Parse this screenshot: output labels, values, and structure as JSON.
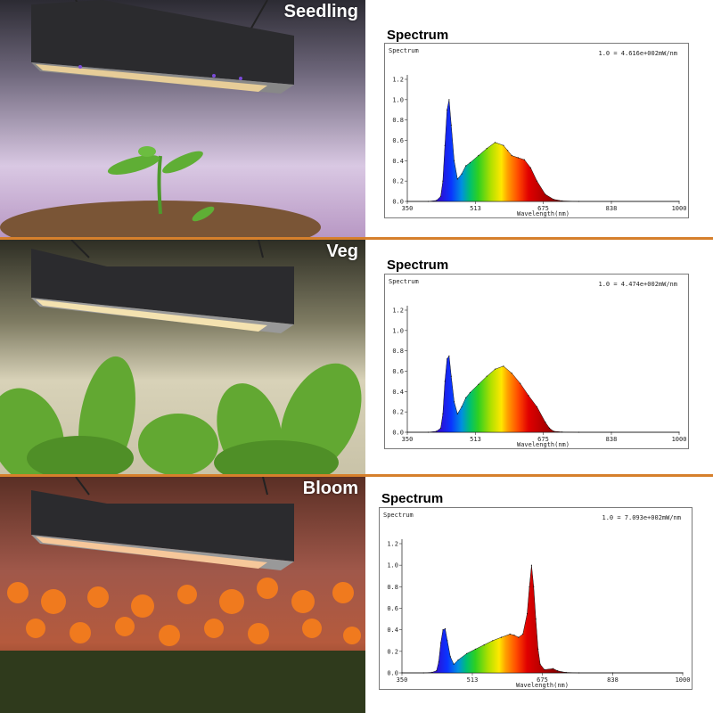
{
  "panels": [
    {
      "stage": "Seedling",
      "title": "Spectrum"
    },
    {
      "stage": "Veg",
      "title": "Spectrum"
    },
    {
      "stage": "Bloom",
      "title": "Spectrum"
    }
  ],
  "chart_data": [
    {
      "type": "area",
      "ylabel": "Spectrum",
      "xlabel": "Wavelength(nm)",
      "annotation": "1.0 = 4.616e+002mW/nm",
      "xlim": [
        350,
        1000
      ],
      "ylim": [
        0,
        1.2
      ],
      "xticks": [
        "350",
        "513",
        "675",
        "838",
        "1000"
      ],
      "yticks": [
        "0.0",
        "0.2",
        "0.4",
        "0.6",
        "0.8",
        "1.0",
        "1.2"
      ],
      "grid": false,
      "x": [
        350,
        400,
        420,
        430,
        435,
        440,
        445,
        450,
        455,
        462,
        470,
        480,
        490,
        500,
        520,
        540,
        560,
        580,
        590,
        600,
        615,
        630,
        645,
        660,
        680,
        700,
        720,
        760,
        838,
        1000
      ],
      "y": [
        0.0,
        0.0,
        0.01,
        0.05,
        0.2,
        0.55,
        0.9,
        1.0,
        0.75,
        0.4,
        0.22,
        0.27,
        0.35,
        0.38,
        0.45,
        0.52,
        0.58,
        0.55,
        0.5,
        0.45,
        0.43,
        0.41,
        0.33,
        0.2,
        0.07,
        0.02,
        0.005,
        0.0,
        0.0,
        0.0
      ]
    },
    {
      "type": "area",
      "ylabel": "Spectrum",
      "xlabel": "Wavelength(nm)",
      "annotation": "1.0 = 4.474e+002mW/nm",
      "xlim": [
        350,
        1000
      ],
      "ylim": [
        0,
        1.2
      ],
      "xticks": [
        "350",
        "513",
        "675",
        "838",
        "1000"
      ],
      "yticks": [
        "0.0",
        "0.2",
        "0.4",
        "0.6",
        "0.8",
        "1.0",
        "1.2"
      ],
      "grid": false,
      "x": [
        350,
        400,
        420,
        430,
        435,
        440,
        445,
        450,
        455,
        462,
        470,
        480,
        490,
        500,
        520,
        540,
        560,
        580,
        600,
        620,
        640,
        660,
        680,
        690,
        700,
        720,
        760,
        838,
        1000
      ],
      "y": [
        0.0,
        0.0,
        0.01,
        0.04,
        0.18,
        0.5,
        0.72,
        0.75,
        0.55,
        0.3,
        0.18,
        0.25,
        0.34,
        0.39,
        0.47,
        0.55,
        0.62,
        0.65,
        0.58,
        0.48,
        0.36,
        0.25,
        0.1,
        0.04,
        0.01,
        0.003,
        0.0,
        0.0,
        0.0
      ]
    },
    {
      "type": "area",
      "ylabel": "Spectrum",
      "xlabel": "Wavelength(nm)",
      "annotation": "1.0 = 7.093e+002mW/nm",
      "xlim": [
        350,
        1000
      ],
      "ylim": [
        0,
        1.2
      ],
      "xticks": [
        "350",
        "513",
        "675",
        "838",
        "1000"
      ],
      "yticks": [
        "0.0",
        "0.2",
        "0.4",
        "0.6",
        "0.8",
        "1.0",
        "1.2"
      ],
      "grid": false,
      "x": [
        350,
        400,
        420,
        430,
        435,
        440,
        445,
        450,
        455,
        462,
        470,
        480,
        500,
        520,
        540,
        560,
        580,
        600,
        610,
        620,
        630,
        640,
        645,
        650,
        655,
        660,
        665,
        670,
        680,
        700,
        710,
        720,
        730,
        760,
        838,
        1000
      ],
      "y": [
        0.0,
        0.0,
        0.005,
        0.02,
        0.1,
        0.28,
        0.4,
        0.41,
        0.3,
        0.15,
        0.08,
        0.12,
        0.18,
        0.22,
        0.26,
        0.3,
        0.33,
        0.36,
        0.35,
        0.33,
        0.36,
        0.55,
        0.8,
        1.0,
        0.8,
        0.5,
        0.22,
        0.08,
        0.03,
        0.04,
        0.02,
        0.01,
        0.004,
        0.0,
        0.0,
        0.0
      ]
    }
  ]
}
